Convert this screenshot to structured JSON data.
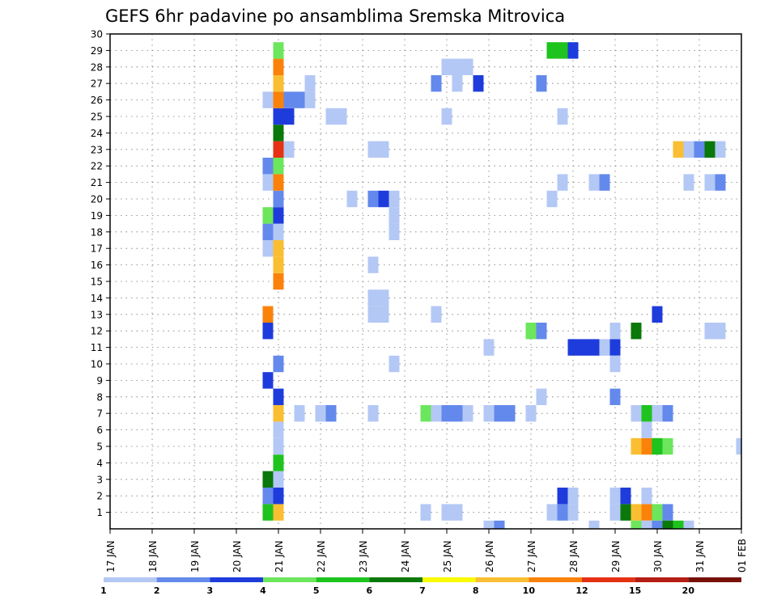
{
  "chart_data": {
    "type": "heatmap",
    "title": "GEFS 6hr padavine po ansamblima Sremska Mitrovica",
    "xlabel": "",
    "ylabel": "",
    "x_axis": {
      "kind": "date",
      "range": [
        "2019-01-17",
        "2019-02-01"
      ],
      "step_hours": 6,
      "tick_labels": [
        "17 JAN",
        "18 JAN",
        "19 JAN",
        "20 JAN",
        "21 JAN",
        "22 JAN",
        "23 JAN",
        "24 JAN",
        "25 JAN",
        "26 JAN",
        "27 JAN",
        "28 JAN",
        "29 JAN",
        "30 JAN",
        "31 JAN",
        "01 FEB"
      ]
    },
    "y_axis": {
      "range": [
        0,
        30
      ],
      "tick_labels": [
        "1",
        "2",
        "3",
        "4",
        "5",
        "6",
        "7",
        "8",
        "9",
        "10",
        "11",
        "12",
        "13",
        "14",
        "15",
        "16",
        "17",
        "18",
        "19",
        "20",
        "21",
        "22",
        "23",
        "24",
        "25",
        "26",
        "27",
        "28",
        "29",
        "30"
      ]
    },
    "grid": true,
    "legend": {
      "placement": "bottom",
      "tick_labels": [
        "1",
        "2",
        "3",
        "4",
        "5",
        "6",
        "7",
        "8",
        "10",
        "12",
        "15",
        "20"
      ],
      "bins": [
        {
          "min": 1,
          "max": 2,
          "color": "#b4c8f5"
        },
        {
          "min": 2,
          "max": 3,
          "color": "#6489ec"
        },
        {
          "min": 3,
          "max": 4,
          "color": "#1e3cdc"
        },
        {
          "min": 4,
          "max": 5,
          "color": "#6ce65c"
        },
        {
          "min": 5,
          "max": 6,
          "color": "#1ec31e"
        },
        {
          "min": 6,
          "max": 7,
          "color": "#0a780a"
        },
        {
          "min": 7,
          "max": 8,
          "color": "#fafa00"
        },
        {
          "min": 8,
          "max": 10,
          "color": "#fabe32"
        },
        {
          "min": 10,
          "max": 12,
          "color": "#fa820a"
        },
        {
          "min": 12,
          "max": 15,
          "color": "#e63214"
        },
        {
          "min": 15,
          "max": 20,
          "color": "#b41e14"
        },
        {
          "min": 20,
          "max": 25,
          "color": "#781008"
        }
      ]
    },
    "cells": [
      {
        "t": "2019-01-20T18:00",
        "m": 1,
        "v": 5.5
      },
      {
        "t": "2019-01-21T00:00",
        "m": 1,
        "v": 9
      },
      {
        "t": "2019-01-20T18:00",
        "m": 2,
        "v": 2.5
      },
      {
        "t": "2019-01-21T00:00",
        "m": 2,
        "v": 3.5
      },
      {
        "t": "2019-01-20T18:00",
        "m": 3,
        "v": 6.5
      },
      {
        "t": "2019-01-21T00:00",
        "m": 3,
        "v": 1.5
      },
      {
        "t": "2019-01-21T00:00",
        "m": 4,
        "v": 5.5
      },
      {
        "t": "2019-01-21T00:00",
        "m": 5,
        "v": 1.5
      },
      {
        "t": "2019-01-21T00:00",
        "m": 6,
        "v": 1.5
      },
      {
        "t": "2019-01-21T00:00",
        "m": 7,
        "v": 9
      },
      {
        "t": "2019-01-21T12:00",
        "m": 7,
        "v": 1.5
      },
      {
        "t": "2019-01-22T00:00",
        "m": 7,
        "v": 1.5
      },
      {
        "t": "2019-01-22T06:00",
        "m": 7,
        "v": 2.5
      },
      {
        "t": "2019-01-23T06:00",
        "m": 7,
        "v": 1.5
      },
      {
        "t": "2019-01-21T00:00",
        "m": 8,
        "v": 3.5
      },
      {
        "t": "2019-01-20T18:00",
        "m": 9,
        "v": 3.5
      },
      {
        "t": "2019-01-21T00:00",
        "m": 10,
        "v": 2.5
      },
      {
        "t": "2019-01-20T18:00",
        "m": 12,
        "v": 3.5
      },
      {
        "t": "2019-01-20T18:00",
        "m": 13,
        "v": 11
      },
      {
        "t": "2019-01-21T00:00",
        "m": 15,
        "v": 11
      },
      {
        "t": "2019-01-21T00:00",
        "m": 16,
        "v": 9
      },
      {
        "t": "2019-01-20T18:00",
        "m": 17,
        "v": 1.5
      },
      {
        "t": "2019-01-21T00:00",
        "m": 17,
        "v": 9
      },
      {
        "t": "2019-01-20T18:00",
        "m": 18,
        "v": 2.5
      },
      {
        "t": "2019-01-21T00:00",
        "m": 18,
        "v": 1.5
      },
      {
        "t": "2019-01-20T18:00",
        "m": 19,
        "v": 4.5
      },
      {
        "t": "2019-01-21T00:00",
        "m": 19,
        "v": 3.5
      },
      {
        "t": "2019-01-21T00:00",
        "m": 20,
        "v": 2.5
      },
      {
        "t": "2019-01-20T18:00",
        "m": 21,
        "v": 1.5
      },
      {
        "t": "2019-01-21T00:00",
        "m": 21,
        "v": 11
      },
      {
        "t": "2019-01-20T18:00",
        "m": 22,
        "v": 2.5
      },
      {
        "t": "2019-01-21T00:00",
        "m": 22,
        "v": 4.5
      },
      {
        "t": "2019-01-21T00:00",
        "m": 23,
        "v": 13
      },
      {
        "t": "2019-01-21T06:00",
        "m": 23,
        "v": 1.5
      },
      {
        "t": "2019-01-21T00:00",
        "m": 24,
        "v": 6.5
      },
      {
        "t": "2019-01-21T00:00",
        "m": 25,
        "v": 3.5
      },
      {
        "t": "2019-01-21T06:00",
        "m": 25,
        "v": 3.5
      },
      {
        "t": "2019-01-20T18:00",
        "m": 26,
        "v": 1.5
      },
      {
        "t": "2019-01-21T00:00",
        "m": 26,
        "v": 11
      },
      {
        "t": "2019-01-21T06:00",
        "m": 26,
        "v": 2.5
      },
      {
        "t": "2019-01-21T12:00",
        "m": 26,
        "v": 2.5
      },
      {
        "t": "2019-01-21T18:00",
        "m": 26,
        "v": 1.5
      },
      {
        "t": "2019-01-21T00:00",
        "m": 27,
        "v": 9
      },
      {
        "t": "2019-01-21T18:00",
        "m": 27,
        "v": 1.5
      },
      {
        "t": "2019-01-21T00:00",
        "m": 28,
        "v": 11
      },
      {
        "t": "2019-01-21T00:00",
        "m": 29,
        "v": 4.5
      },
      {
        "t": "2019-01-22T06:00",
        "m": 25,
        "v": 1.5
      },
      {
        "t": "2019-01-22T12:00",
        "m": 25,
        "v": 1.5
      },
      {
        "t": "2019-01-22T18:00",
        "m": 20,
        "v": 1.5
      },
      {
        "t": "2019-01-23T06:00",
        "m": 13,
        "v": 1.5
      },
      {
        "t": "2019-01-23T12:00",
        "m": 13,
        "v": 1.5
      },
      {
        "t": "2019-01-23T06:00",
        "m": 14,
        "v": 1.5
      },
      {
        "t": "2019-01-23T12:00",
        "m": 14,
        "v": 1.5
      },
      {
        "t": "2019-01-23T06:00",
        "m": 16,
        "v": 1.5
      },
      {
        "t": "2019-01-23T06:00",
        "m": 20,
        "v": 2.5
      },
      {
        "t": "2019-01-23T12:00",
        "m": 20,
        "v": 3.5
      },
      {
        "t": "2019-01-23T18:00",
        "m": 20,
        "v": 1.5
      },
      {
        "t": "2019-01-23T18:00",
        "m": 18,
        "v": 1.5
      },
      {
        "t": "2019-01-23T18:00",
        "m": 19,
        "v": 1.5
      },
      {
        "t": "2019-01-23T06:00",
        "m": 23,
        "v": 1.5
      },
      {
        "t": "2019-01-23T12:00",
        "m": 23,
        "v": 1.5
      },
      {
        "t": "2019-01-23T18:00",
        "m": 10,
        "v": 1.5
      },
      {
        "t": "2019-01-24T12:00",
        "m": 1,
        "v": 1.5
      },
      {
        "t": "2019-01-24T12:00",
        "m": 7,
        "v": 4.5
      },
      {
        "t": "2019-01-24T18:00",
        "m": 7,
        "v": 1.5
      },
      {
        "t": "2019-01-25T00:00",
        "m": 7,
        "v": 2.5
      },
      {
        "t": "2019-01-25T06:00",
        "m": 7,
        "v": 2.5
      },
      {
        "t": "2019-01-25T12:00",
        "m": 7,
        "v": 1.5
      },
      {
        "t": "2019-01-24T18:00",
        "m": 13,
        "v": 1.5
      },
      {
        "t": "2019-01-24T18:00",
        "m": 27,
        "v": 2.5
      },
      {
        "t": "2019-01-25T00:00",
        "m": 1,
        "v": 1.5
      },
      {
        "t": "2019-01-25T06:00",
        "m": 1,
        "v": 1.5
      },
      {
        "t": "2019-01-25T00:00",
        "m": 25,
        "v": 1.5
      },
      {
        "t": "2019-01-25T00:00",
        "m": 28,
        "v": 1.5
      },
      {
        "t": "2019-01-25T06:00",
        "m": 28,
        "v": 1.5
      },
      {
        "t": "2019-01-25T12:00",
        "m": 28,
        "v": 1.5
      },
      {
        "t": "2019-01-25T06:00",
        "m": 27,
        "v": 1.5
      },
      {
        "t": "2019-01-25T18:00",
        "m": 27,
        "v": 3.5
      },
      {
        "t": "2019-01-26T00:00",
        "m": 7,
        "v": 1.5
      },
      {
        "t": "2019-01-26T06:00",
        "m": 7,
        "v": 2.5
      },
      {
        "t": "2019-01-26T12:00",
        "m": 7,
        "v": 2.5
      },
      {
        "t": "2019-01-26T00:00",
        "m": 11,
        "v": 1.5
      },
      {
        "t": "2019-01-26T00:00",
        "m": 0,
        "v": 1.5
      },
      {
        "t": "2019-01-26T06:00",
        "m": 0,
        "v": 2.5
      },
      {
        "t": "2019-01-27T00:00",
        "m": 7,
        "v": 1.5
      },
      {
        "t": "2019-01-27T00:00",
        "m": 12,
        "v": 4.5
      },
      {
        "t": "2019-01-27T06:00",
        "m": 12,
        "v": 2.5
      },
      {
        "t": "2019-01-27T06:00",
        "m": 8,
        "v": 1.5
      },
      {
        "t": "2019-01-27T06:00",
        "m": 27,
        "v": 2.5
      },
      {
        "t": "2019-01-27T12:00",
        "m": 20,
        "v": 1.5
      },
      {
        "t": "2019-01-27T12:00",
        "m": 29,
        "v": 5.5
      },
      {
        "t": "2019-01-27T18:00",
        "m": 29,
        "v": 5.5
      },
      {
        "t": "2019-01-28T00:00",
        "m": 29,
        "v": 3.5
      },
      {
        "t": "2019-01-27T12:00",
        "m": 1,
        "v": 1.5
      },
      {
        "t": "2019-01-27T18:00",
        "m": 1,
        "v": 2.5
      },
      {
        "t": "2019-01-28T00:00",
        "m": 1,
        "v": 1.5
      },
      {
        "t": "2019-01-27T18:00",
        "m": 2,
        "v": 3.5
      },
      {
        "t": "2019-01-28T00:00",
        "m": 2,
        "v": 1.5
      },
      {
        "t": "2019-01-27T18:00",
        "m": 21,
        "v": 1.5
      },
      {
        "t": "2019-01-27T18:00",
        "m": 25,
        "v": 1.5
      },
      {
        "t": "2019-01-28T00:00",
        "m": 11,
        "v": 3.5
      },
      {
        "t": "2019-01-28T06:00",
        "m": 11,
        "v": 3.5
      },
      {
        "t": "2019-01-28T12:00",
        "m": 11,
        "v": 3.5
      },
      {
        "t": "2019-01-28T18:00",
        "m": 11,
        "v": 1.5
      },
      {
        "t": "2019-01-29T00:00",
        "m": 11,
        "v": 3.5
      },
      {
        "t": "2019-01-28T12:00",
        "m": 21,
        "v": 1.5
      },
      {
        "t": "2019-01-28T18:00",
        "m": 21,
        "v": 2.5
      },
      {
        "t": "2019-01-28T12:00",
        "m": 0,
        "v": 1.5
      },
      {
        "t": "2019-01-29T00:00",
        "m": 1,
        "v": 1.5
      },
      {
        "t": "2019-01-29T06:00",
        "m": 1,
        "v": 6.5
      },
      {
        "t": "2019-01-29T12:00",
        "m": 1,
        "v": 9
      },
      {
        "t": "2019-01-29T18:00",
        "m": 1,
        "v": 11
      },
      {
        "t": "2019-01-30T00:00",
        "m": 1,
        "v": 4.5
      },
      {
        "t": "2019-01-30T06:00",
        "m": 1,
        "v": 2.5
      },
      {
        "t": "2019-01-29T12:00",
        "m": 0,
        "v": 4.5
      },
      {
        "t": "2019-01-29T18:00",
        "m": 0,
        "v": 1.5
      },
      {
        "t": "2019-01-30T00:00",
        "m": 0,
        "v": 2.5
      },
      {
        "t": "2019-01-30T06:00",
        "m": 0,
        "v": 6.5
      },
      {
        "t": "2019-01-30T12:00",
        "m": 0,
        "v": 5.5
      },
      {
        "t": "2019-01-30T18:00",
        "m": 0,
        "v": 1.5
      },
      {
        "t": "2019-01-29T00:00",
        "m": 2,
        "v": 1.5
      },
      {
        "t": "2019-01-29T06:00",
        "m": 2,
        "v": 3.5
      },
      {
        "t": "2019-01-29T18:00",
        "m": 2,
        "v": 1.5
      },
      {
        "t": "2019-01-29T12:00",
        "m": 5,
        "v": 9
      },
      {
        "t": "2019-01-29T18:00",
        "m": 5,
        "v": 11
      },
      {
        "t": "2019-01-30T00:00",
        "m": 5,
        "v": 5.5
      },
      {
        "t": "2019-01-30T06:00",
        "m": 5,
        "v": 4.5
      },
      {
        "t": "2019-01-29T18:00",
        "m": 6,
        "v": 1.5
      },
      {
        "t": "2019-01-29T12:00",
        "m": 7,
        "v": 1.5
      },
      {
        "t": "2019-01-29T18:00",
        "m": 7,
        "v": 5.5
      },
      {
        "t": "2019-01-30T00:00",
        "m": 7,
        "v": 1.5
      },
      {
        "t": "2019-01-30T06:00",
        "m": 7,
        "v": 2.5
      },
      {
        "t": "2019-01-29T00:00",
        "m": 8,
        "v": 2.5
      },
      {
        "t": "2019-01-29T00:00",
        "m": 10,
        "v": 1.5
      },
      {
        "t": "2019-01-29T00:00",
        "m": 12,
        "v": 1.5
      },
      {
        "t": "2019-01-29T12:00",
        "m": 12,
        "v": 6.5
      },
      {
        "t": "2019-01-30T00:00",
        "m": 13,
        "v": 3.5
      },
      {
        "t": "2019-01-30T18:00",
        "m": 21,
        "v": 1.5
      },
      {
        "t": "2019-01-31T06:00",
        "m": 21,
        "v": 1.5
      },
      {
        "t": "2019-01-31T12:00",
        "m": 21,
        "v": 2.5
      },
      {
        "t": "2019-01-31T06:00",
        "m": 12,
        "v": 1.5
      },
      {
        "t": "2019-01-31T12:00",
        "m": 12,
        "v": 1.5
      },
      {
        "t": "2019-01-30T12:00",
        "m": 23,
        "v": 9
      },
      {
        "t": "2019-01-30T18:00",
        "m": 23,
        "v": 1.5
      },
      {
        "t": "2019-01-31T00:00",
        "m": 23,
        "v": 2.5
      },
      {
        "t": "2019-01-31T06:00",
        "m": 23,
        "v": 6.5
      },
      {
        "t": "2019-01-31T12:00",
        "m": 23,
        "v": 1.5
      },
      {
        "t": "2019-02-01T00:00",
        "m": 5,
        "v": 1.5
      }
    ]
  }
}
